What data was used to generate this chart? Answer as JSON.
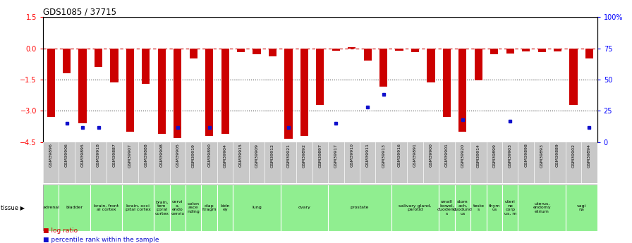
{
  "title": "GDS1085 / 37715",
  "samples": [
    "GSM39896",
    "GSM39906",
    "GSM39895",
    "GSM39918",
    "GSM39887",
    "GSM39907",
    "GSM39888",
    "GSM39908",
    "GSM39905",
    "GSM39919",
    "GSM39890",
    "GSM39904",
    "GSM39915",
    "GSM39909",
    "GSM39912",
    "GSM39921",
    "GSM39892",
    "GSM39897",
    "GSM39917",
    "GSM39910",
    "GSM39911",
    "GSM39913",
    "GSM39916",
    "GSM39891",
    "GSM39900",
    "GSM39901",
    "GSM39920",
    "GSM39914",
    "GSM39899",
    "GSM39903",
    "GSM39898",
    "GSM39893",
    "GSM39889",
    "GSM39902",
    "GSM39894"
  ],
  "log_ratio": [
    -3.3,
    -1.2,
    -3.6,
    -0.9,
    -1.65,
    -4.0,
    -1.7,
    -4.1,
    -4.3,
    -0.5,
    -4.2,
    -4.1,
    -0.2,
    -0.3,
    -0.4,
    -4.35,
    -4.2,
    -2.7,
    -0.1,
    0.05,
    -0.6,
    -1.85,
    -0.1,
    -0.2,
    -1.65,
    -3.3,
    -4.0,
    -1.55,
    -0.3,
    -0.25,
    -0.15,
    -0.2,
    -0.15,
    -2.7,
    -0.5
  ],
  "percentile_rank": [
    null,
    15,
    12,
    12,
    null,
    null,
    null,
    null,
    12,
    null,
    12,
    null,
    null,
    null,
    null,
    12,
    null,
    null,
    15,
    null,
    28,
    38,
    null,
    null,
    null,
    null,
    18,
    null,
    null,
    17,
    null,
    null,
    null,
    null,
    12
  ],
  "tissue_groups": [
    {
      "label": "adrenal",
      "start": 0,
      "end": 1
    },
    {
      "label": "bladder",
      "start": 1,
      "end": 3
    },
    {
      "label": "brain, front\nal cortex",
      "start": 3,
      "end": 5
    },
    {
      "label": "brain, occi\npital cortex",
      "start": 5,
      "end": 7
    },
    {
      "label": "brain,\ntem\nporal\ncortex",
      "start": 7,
      "end": 8
    },
    {
      "label": "cervi\nx,\nendo\ncervix",
      "start": 8,
      "end": 9
    },
    {
      "label": "colon\nasce\nnding",
      "start": 9,
      "end": 10
    },
    {
      "label": "diap\nhragm",
      "start": 10,
      "end": 11
    },
    {
      "label": "kidn\ney",
      "start": 11,
      "end": 12
    },
    {
      "label": "lung",
      "start": 12,
      "end": 15
    },
    {
      "label": "ovary",
      "start": 15,
      "end": 18
    },
    {
      "label": "prostate",
      "start": 18,
      "end": 22
    },
    {
      "label": "salivary gland,\nparotid",
      "start": 22,
      "end": 25
    },
    {
      "label": "small\nbowel,\nduodenu\ns",
      "start": 25,
      "end": 26
    },
    {
      "label": "stom\nach,\nduodund\nus",
      "start": 26,
      "end": 27
    },
    {
      "label": "teste\ns",
      "start": 27,
      "end": 28
    },
    {
      "label": "thym\nus",
      "start": 28,
      "end": 29
    },
    {
      "label": "uteri\nne\ncorp\nus, m",
      "start": 29,
      "end": 30
    },
    {
      "label": "uterus,\nendomy\netrium",
      "start": 30,
      "end": 33
    },
    {
      "label": "vagi\nna",
      "start": 33,
      "end": 35
    }
  ],
  "ylim_left": [
    -4.5,
    1.5
  ],
  "ylim_right": [
    0,
    100
  ],
  "yticks_left": [
    1.5,
    0,
    -1.5,
    -3,
    -4.5
  ],
  "yticks_right": [
    100,
    75,
    50,
    25,
    0
  ],
  "bar_color": "#CC0000",
  "dot_color": "#1010CC",
  "chart_bg": "#ffffff",
  "xticklabel_bg": "#C8C8C8",
  "tissue_bg": "#90EE90",
  "zero_line_color": "#CC0000",
  "dotted_line_color": "#444444",
  "top_line_color": "#000000"
}
